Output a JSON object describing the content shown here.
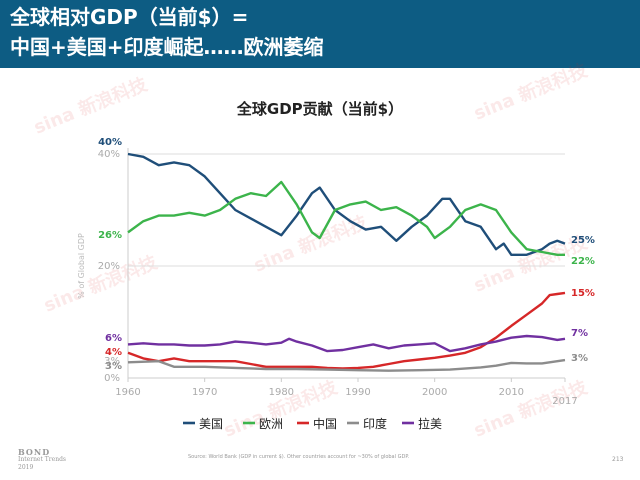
{
  "header": {
    "line1": "全球相对GDP（当前$）=",
    "line2": "中国+美国+印度崛起……欧洲萎缩"
  },
  "chart_data": {
    "type": "line",
    "title": "全球GDP贡献（当前$）",
    "ylabel": "% of Global GDP",
    "xlim": [
      1960,
      2017
    ],
    "ylim": [
      0,
      40
    ],
    "x_ticks": [
      "1960",
      "1970",
      "1980",
      "1990",
      "2000",
      "2010",
      "2017"
    ],
    "y_ticks": [
      "0%",
      "20%",
      "40%"
    ],
    "side_ticks": [
      "3%"
    ],
    "grid": true,
    "legend_position": "bottom",
    "series": [
      {
        "name": "美国",
        "color": "#1f4e79",
        "start_label": "40%",
        "end_label": "25%",
        "points": [
          [
            1960,
            40
          ],
          [
            1962,
            39.5
          ],
          [
            1964,
            38
          ],
          [
            1966,
            38.5
          ],
          [
            1968,
            38
          ],
          [
            1970,
            36
          ],
          [
            1972,
            33
          ],
          [
            1974,
            30
          ],
          [
            1976,
            28.5
          ],
          [
            1978,
            27
          ],
          [
            1980,
            25.5
          ],
          [
            1982,
            29
          ],
          [
            1984,
            33
          ],
          [
            1985,
            34
          ],
          [
            1987,
            30
          ],
          [
            1989,
            28
          ],
          [
            1991,
            26.5
          ],
          [
            1993,
            27
          ],
          [
            1995,
            24.5
          ],
          [
            1997,
            27
          ],
          [
            1999,
            29
          ],
          [
            2001,
            32
          ],
          [
            2002,
            32
          ],
          [
            2004,
            28
          ],
          [
            2006,
            27
          ],
          [
            2008,
            23
          ],
          [
            2009,
            24
          ],
          [
            2010,
            22
          ],
          [
            2012,
            22
          ],
          [
            2014,
            23
          ],
          [
            2015,
            24
          ],
          [
            2016,
            24.5
          ],
          [
            2017,
            24
          ]
        ]
      },
      {
        "name": "欧洲",
        "color": "#3cb44b",
        "start_label": "26%",
        "end_label": "22%",
        "points": [
          [
            1960,
            26
          ],
          [
            1962,
            28
          ],
          [
            1964,
            29
          ],
          [
            1966,
            29
          ],
          [
            1968,
            29.5
          ],
          [
            1970,
            29
          ],
          [
            1972,
            30
          ],
          [
            1974,
            32
          ],
          [
            1976,
            33
          ],
          [
            1978,
            32.5
          ],
          [
            1980,
            35
          ],
          [
            1982,
            31
          ],
          [
            1984,
            26
          ],
          [
            1985,
            25
          ],
          [
            1987,
            30
          ],
          [
            1989,
            31
          ],
          [
            1991,
            31.5
          ],
          [
            1993,
            30
          ],
          [
            1995,
            30.5
          ],
          [
            1997,
            29
          ],
          [
            1999,
            27
          ],
          [
            2000,
            25
          ],
          [
            2002,
            27
          ],
          [
            2004,
            30
          ],
          [
            2006,
            31
          ],
          [
            2008,
            30
          ],
          [
            2010,
            26
          ],
          [
            2012,
            23
          ],
          [
            2014,
            22.5
          ],
          [
            2016,
            22
          ],
          [
            2017,
            22
          ]
        ]
      },
      {
        "name": "中国",
        "color": "#d62728",
        "start_label": "4%",
        "end_label": "15%",
        "points": [
          [
            1960,
            4.5
          ],
          [
            1962,
            3.5
          ],
          [
            1964,
            3
          ],
          [
            1966,
            3.5
          ],
          [
            1968,
            3
          ],
          [
            1970,
            3
          ],
          [
            1972,
            3
          ],
          [
            1974,
            3
          ],
          [
            1976,
            2.5
          ],
          [
            1978,
            2
          ],
          [
            1980,
            2
          ],
          [
            1982,
            2
          ],
          [
            1984,
            2
          ],
          [
            1986,
            1.8
          ],
          [
            1988,
            1.7
          ],
          [
            1990,
            1.8
          ],
          [
            1992,
            2
          ],
          [
            1994,
            2.5
          ],
          [
            1996,
            3
          ],
          [
            1998,
            3.3
          ],
          [
            2000,
            3.6
          ],
          [
            2002,
            4
          ],
          [
            2004,
            4.5
          ],
          [
            2006,
            5.5
          ],
          [
            2008,
            7.2
          ],
          [
            2010,
            9.3
          ],
          [
            2012,
            11.3
          ],
          [
            2014,
            13.3
          ],
          [
            2015,
            14.8
          ],
          [
            2016,
            15.0
          ],
          [
            2017,
            15.2
          ]
        ]
      },
      {
        "name": "印度",
        "color": "#8c8c8c",
        "start_label": "3%",
        "end_label": "3%",
        "points": [
          [
            1960,
            2.8
          ],
          [
            1964,
            3
          ],
          [
            1966,
            2
          ],
          [
            1970,
            2
          ],
          [
            1974,
            1.8
          ],
          [
            1978,
            1.6
          ],
          [
            1982,
            1.6
          ],
          [
            1986,
            1.5
          ],
          [
            1990,
            1.4
          ],
          [
            1994,
            1.3
          ],
          [
            1998,
            1.4
          ],
          [
            2002,
            1.5
          ],
          [
            2006,
            1.9
          ],
          [
            2008,
            2.2
          ],
          [
            2010,
            2.7
          ],
          [
            2012,
            2.6
          ],
          [
            2014,
            2.6
          ],
          [
            2017,
            3.2
          ]
        ]
      },
      {
        "name": "拉美",
        "color": "#7030a0",
        "start_label": "6%",
        "end_label": "7%",
        "points": [
          [
            1960,
            6
          ],
          [
            1962,
            6.2
          ],
          [
            1964,
            6
          ],
          [
            1966,
            6
          ],
          [
            1968,
            5.8
          ],
          [
            1970,
            5.8
          ],
          [
            1972,
            6
          ],
          [
            1974,
            6.5
          ],
          [
            1976,
            6.3
          ],
          [
            1978,
            6
          ],
          [
            1980,
            6.3
          ],
          [
            1981,
            7
          ],
          [
            1982,
            6.5
          ],
          [
            1984,
            5.8
          ],
          [
            1986,
            4.8
          ],
          [
            1988,
            5
          ],
          [
            1990,
            5.5
          ],
          [
            1992,
            6
          ],
          [
            1994,
            5.3
          ],
          [
            1996,
            5.8
          ],
          [
            1998,
            6
          ],
          [
            2000,
            6.2
          ],
          [
            2002,
            4.8
          ],
          [
            2004,
            5.3
          ],
          [
            2006,
            6
          ],
          [
            2008,
            6.5
          ],
          [
            2010,
            7.2
          ],
          [
            2012,
            7.5
          ],
          [
            2014,
            7.3
          ],
          [
            2016,
            6.8
          ],
          [
            2017,
            7
          ]
        ]
      }
    ]
  },
  "footer": {
    "source": "Source: World Bank (GDP in current $). Other countries account for ~30% of global GDP.",
    "page_number": "213",
    "bond_line1": "BOND",
    "bond_line2": "Internet Trends",
    "bond_line3": "2019"
  },
  "watermark": {
    "text": "新浪科技",
    "brand": "sina"
  }
}
